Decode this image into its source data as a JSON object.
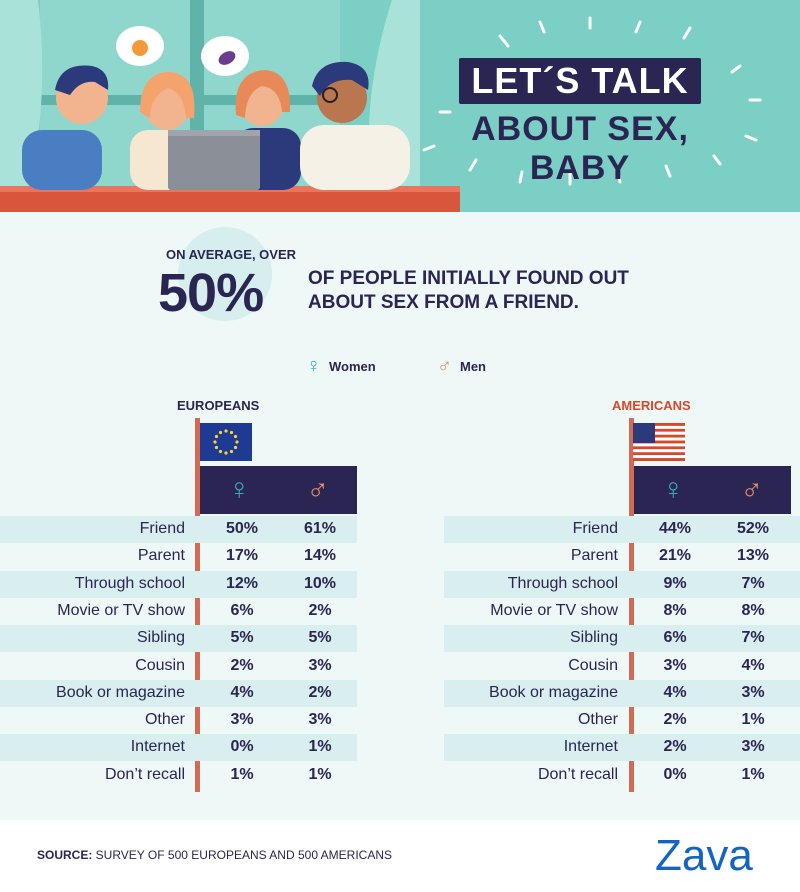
{
  "header": {
    "title_line1": "LET´S TALK",
    "title_line2": "ABOUT SEX, BABY",
    "thought_icons": [
      "peach-icon",
      "eggplant-icon"
    ]
  },
  "stat": {
    "pre": "ON AVERAGE, OVER",
    "big": "50%",
    "text": "OF PEOPLE INITIALLY FOUND OUT ABOUT SEX FROM A FRIEND."
  },
  "legend": {
    "women_symbol": "♀",
    "women": "Women",
    "men_symbol": "♂",
    "men": "Men"
  },
  "colors": {
    "navy": "#2a2552",
    "teal": "#3aa7b5",
    "orange": "#e98f67",
    "pole": "#d36b54",
    "american_label": "#d9472b"
  },
  "chart_data": [
    {
      "type": "table",
      "title": "EUROPEANS",
      "flag": "eu-flag-icon",
      "columns": [
        "♀",
        "♂"
      ],
      "rows": [
        {
          "label": "Friend",
          "women": "50%",
          "men": "61%"
        },
        {
          "label": "Parent",
          "women": "17%",
          "men": "14%"
        },
        {
          "label": "Through school",
          "women": "12%",
          "men": "10%"
        },
        {
          "label": "Movie or TV show",
          "women": "6%",
          "men": "2%"
        },
        {
          "label": "Sibling",
          "women": "5%",
          "men": "5%"
        },
        {
          "label": "Cousin",
          "women": "2%",
          "men": "3%"
        },
        {
          "label": "Book or magazine",
          "women": "4%",
          "men": "2%"
        },
        {
          "label": "Other",
          "women": "3%",
          "men": "3%"
        },
        {
          "label": "Internet",
          "women": "0%",
          "men": "1%"
        },
        {
          "label": "Don’t recall",
          "women": "1%",
          "men": "1%"
        }
      ]
    },
    {
      "type": "table",
      "title": "AMERICANS",
      "flag": "us-flag-icon",
      "columns": [
        "♀",
        "♂"
      ],
      "rows": [
        {
          "label": "Friend",
          "women": "44%",
          "men": "52%"
        },
        {
          "label": "Parent",
          "women": "21%",
          "men": "13%"
        },
        {
          "label": "Through school",
          "women": "9%",
          "men": "7%"
        },
        {
          "label": "Movie or TV show",
          "women": "8%",
          "men": "8%"
        },
        {
          "label": "Sibling",
          "women": "6%",
          "men": "7%"
        },
        {
          "label": "Cousin",
          "women": "3%",
          "men": "4%"
        },
        {
          "label": "Book or magazine",
          "women": "4%",
          "men": "3%"
        },
        {
          "label": "Other",
          "women": "2%",
          "men": "1%"
        },
        {
          "label": "Internet",
          "women": "2%",
          "men": "3%"
        },
        {
          "label": "Don’t recall",
          "women": "0%",
          "men": "1%"
        }
      ]
    }
  ],
  "footer": {
    "source_label": "SOURCE:",
    "source_text": " SURVEY OF 500 EUROPEANS AND 500 AMERICANS",
    "logo": "Zava"
  }
}
